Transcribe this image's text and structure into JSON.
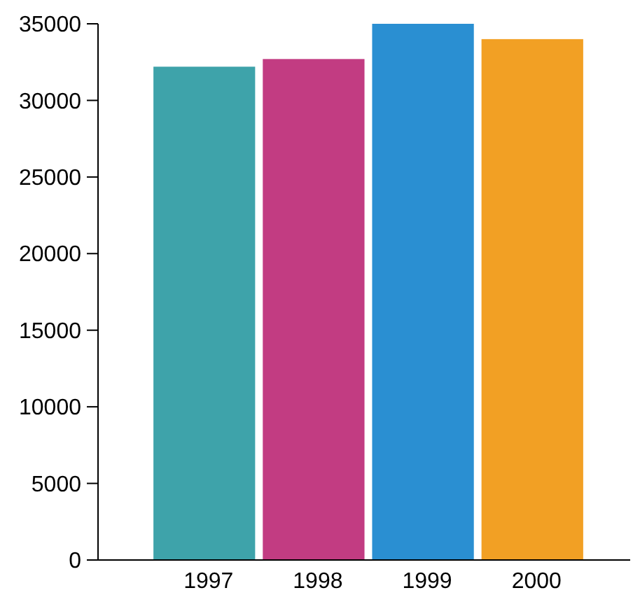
{
  "chart_data": {
    "type": "bar",
    "categories": [
      "1997",
      "1998",
      "1999",
      "2000"
    ],
    "values": [
      32200,
      32700,
      35000,
      34000
    ],
    "colors": [
      "#3ea3aa",
      "#c23c82",
      "#2a8fd2",
      "#f2a024"
    ],
    "ylim": [
      0,
      35000
    ],
    "yticks": [
      0,
      5000,
      10000,
      15000,
      20000,
      25000,
      30000,
      35000
    ],
    "grid": false
  }
}
